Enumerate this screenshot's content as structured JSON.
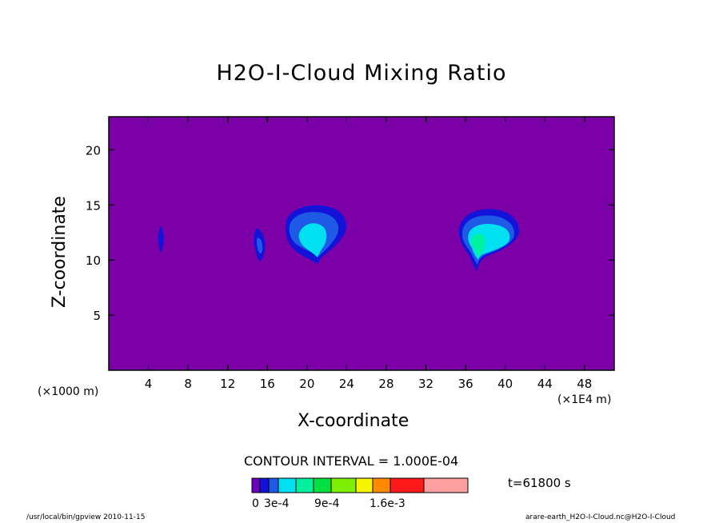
{
  "chart": {
    "title": "H2O-I-Cloud Mixing Ratio",
    "xlabel": "X-coordinate",
    "ylabel": "Z-coordinate",
    "x_unit_left": "(×1000 m)",
    "x_unit_right": "(×1E4 m)",
    "contour_interval": "CONTOUR INTERVAL = 1.000E-04",
    "time": "t=61800 s",
    "footer_left": "/usr/local/bin/gpview  2010-11-15",
    "footer_right": "arare-earth_H2O-I-Cloud.nc@H2O-I-Cloud",
    "colorbar_labels": [
      "0",
      "3e-4",
      "9e-4",
      "1.6e-3"
    ]
  },
  "colors": {
    "background_field": "#7b00a8",
    "levels": [
      "#6b00bd",
      "#1212d8",
      "#1e5ae6",
      "#00e0f0",
      "#00f0a0",
      "#00e040",
      "#7cf000",
      "#f5f500",
      "#ff8a00",
      "#ff1a1a",
      "#ffa0a0"
    ]
  },
  "chart_data": {
    "type": "contour",
    "x_ticks": [
      4,
      8,
      12,
      16,
      20,
      24,
      28,
      32,
      36,
      40,
      44,
      48
    ],
    "y_ticks": [
      5,
      10,
      15,
      20
    ],
    "xlim": [
      0,
      51
    ],
    "ylim": [
      0,
      23
    ],
    "colorbar_levels": [
      0,
      0.0001,
      0.0002,
      0.0003,
      0.0004,
      0.0006,
      0.0009,
      0.0012,
      0.0016,
      0.002,
      0.003
    ],
    "features": [
      {
        "x": 5.3,
        "z": 11.8,
        "max_level": 0.0001
      },
      {
        "x": 15.3,
        "z": 11.5,
        "max_level": 0.0002
      },
      {
        "x": 21.0,
        "z": 12.5,
        "max_level": 0.0004
      },
      {
        "x": 37.8,
        "z": 12.0,
        "max_level": 0.0005
      }
    ]
  }
}
